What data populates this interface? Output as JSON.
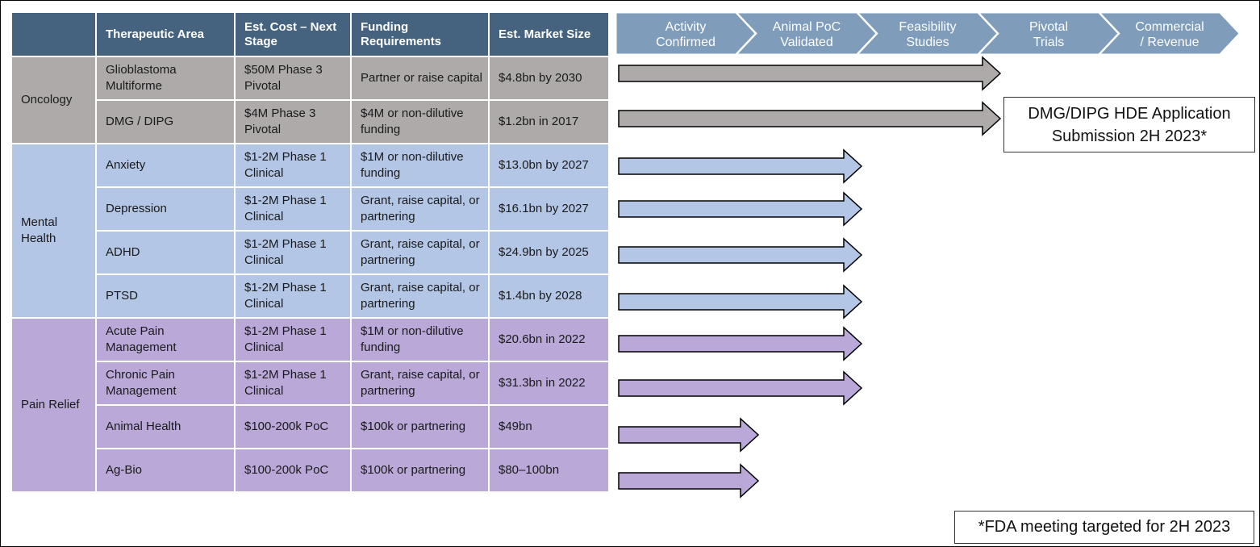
{
  "table": {
    "headers": [
      "",
      "Therapeutic Area",
      "Est. Cost – Next Stage",
      "Funding Requirements",
      "Est. Market Size"
    ],
    "groups": [
      {
        "name": "Oncology",
        "rows": [
          {
            "area": "Glioblastoma Multiforme",
            "cost": "$50M Phase 3 Pivotal",
            "funding": "Partner or raise capital",
            "market": "$4.8bn by 2030",
            "progress_stage": 4
          },
          {
            "area": "DMG / DIPG",
            "cost": "$4M Phase 3 Pivotal",
            "funding": "$4M or non-dilutive funding",
            "market": "$1.2bn in 2017",
            "progress_stage": 4
          }
        ]
      },
      {
        "name": "Mental Health",
        "rows": [
          {
            "area": "Anxiety",
            "cost": "$1-2M Phase 1 Clinical",
            "funding": "$1M or non-dilutive funding",
            "market": "$13.0bn by 2027",
            "progress_stage": 3
          },
          {
            "area": "Depression",
            "cost": "$1-2M Phase 1 Clinical",
            "funding": "Grant, raise capital, or partnering",
            "market": "$16.1bn by 2027",
            "progress_stage": 3
          },
          {
            "area": "ADHD",
            "cost": "$1-2M Phase 1 Clinical",
            "funding": "Grant, raise capital, or partnering",
            "market": "$24.9bn by 2025",
            "progress_stage": 3
          },
          {
            "area": "PTSD",
            "cost": "$1-2M Phase 1 Clinical",
            "funding": "Grant, raise capital, or partnering",
            "market": "$1.4bn by 2028",
            "progress_stage": 3
          }
        ]
      },
      {
        "name": "Pain Relief",
        "rows": [
          {
            "area": "Acute Pain Management",
            "cost": "$1-2M Phase 1 Clinical",
            "funding": "$1M or non-dilutive funding",
            "market": "$20.6bn in 2022",
            "progress_stage": 3
          },
          {
            "area": "Chronic Pain Management",
            "cost": "$1-2M Phase 1 Clinical",
            "funding": "Grant, raise capital, or partnering",
            "market": "$31.3bn in 2022",
            "progress_stage": 3
          },
          {
            "area": "Animal Health",
            "cost": "$100-200k PoC",
            "funding": "$100k or partnering",
            "market": "$49bn",
            "progress_stage": 2
          },
          {
            "area": "Ag-Bio",
            "cost": "$100-200k PoC",
            "funding": "$100k or partnering",
            "market": "$80–100bn",
            "progress_stage": 2
          }
        ]
      }
    ]
  },
  "stages": [
    [
      "Activity",
      "Confirmed"
    ],
    [
      "Animal PoC",
      "Validated"
    ],
    [
      "Feasibility",
      "Studies"
    ],
    [
      "Pivotal",
      "Trials"
    ],
    [
      "Commercial",
      "/ Revenue"
    ]
  ],
  "callouts": {
    "hde_line1": "DMG/DIPG HDE Application",
    "hde_line2": "Submission 2H 2023*",
    "fda": "*FDA meeting targeted for 2H 2023"
  },
  "colors": {
    "header": "#45627f",
    "stage_bar": "#7f9cba",
    "oncology": "#aeaaaa",
    "mental_health": "#b3c6e6",
    "pain_relief": "#b9a8d8"
  }
}
